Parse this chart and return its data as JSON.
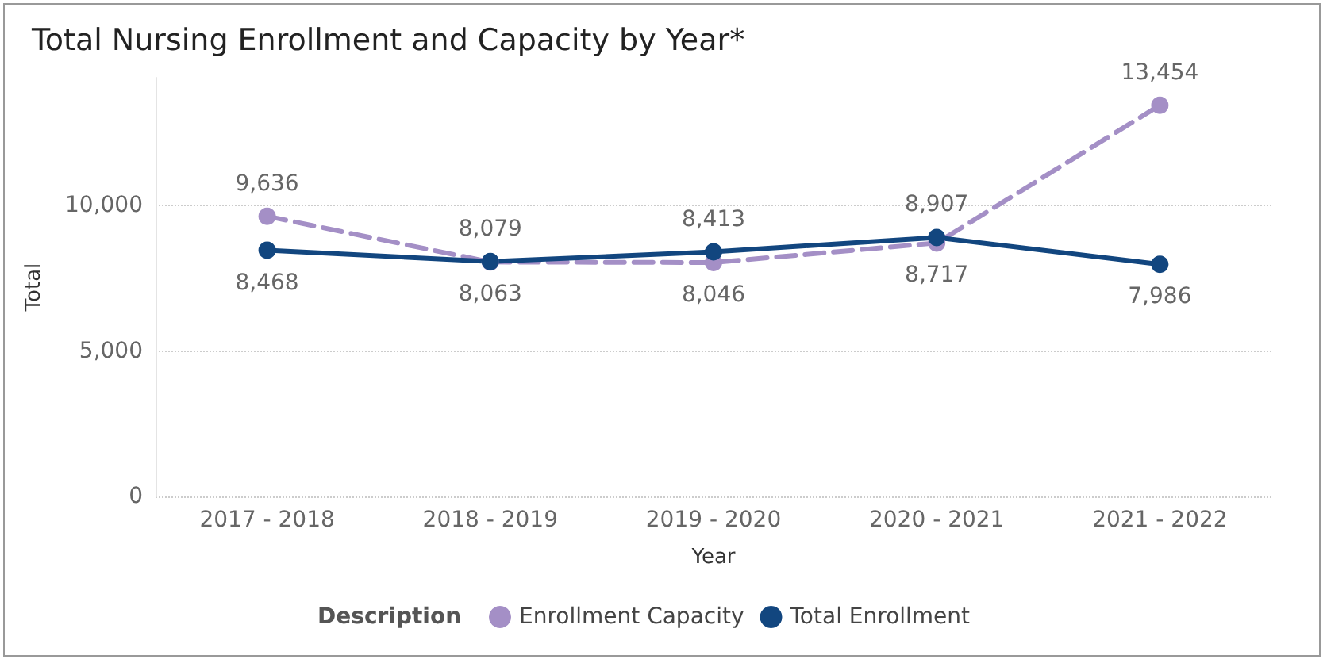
{
  "chart_data": {
    "type": "line",
    "title": "Total Nursing Enrollment and Capacity by Year*",
    "xlabel": "Year",
    "ylabel": "Total",
    "legend_title": "Description",
    "categories": [
      "2017 - 2018",
      "2018 - 2019",
      "2019 - 2020",
      "2020 - 2021",
      "2021 - 2022"
    ],
    "series": [
      {
        "name": "Enrollment Capacity",
        "color": "#a48fc6",
        "line_style": "dashed",
        "values": [
          9636,
          8063,
          8046,
          8717,
          13454
        ],
        "value_labels": [
          "9,636",
          "8,063",
          "8,046",
          "8,717",
          "13,454"
        ]
      },
      {
        "name": "Total Enrollment",
        "color": "#12467f",
        "line_style": "solid",
        "values": [
          8468,
          8079,
          8413,
          8907,
          7986
        ],
        "value_labels": [
          "8,468",
          "8,079",
          "8,413",
          "8,907",
          "7,986"
        ]
      }
    ],
    "ylim": [
      0,
      14400
    ],
    "yticks": [
      {
        "value": 0,
        "label": "0"
      },
      {
        "value": 5000,
        "label": "5,000"
      },
      {
        "value": 10000,
        "label": "10,000"
      }
    ],
    "grid": "y",
    "legend": "bottom",
    "marker": "circle"
  }
}
